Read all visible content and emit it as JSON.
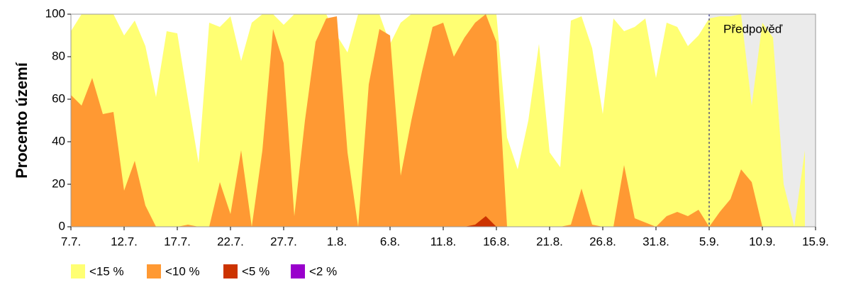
{
  "chart_data": {
    "type": "area",
    "y_label": "Procento území",
    "categories": [
      "7.7.",
      null,
      null,
      null,
      null,
      "12.7.",
      null,
      null,
      null,
      null,
      "17.7.",
      null,
      null,
      null,
      null,
      "22.7.",
      null,
      null,
      null,
      null,
      "27.7.",
      null,
      null,
      null,
      null,
      "1.8.",
      null,
      null,
      null,
      null,
      "6.8.",
      null,
      null,
      null,
      null,
      "11.8.",
      null,
      null,
      null,
      null,
      "16.8.",
      null,
      null,
      null,
      null,
      "21.8.",
      null,
      null,
      null,
      null,
      "26.8.",
      null,
      null,
      null,
      null,
      "31.8.",
      null,
      null,
      null,
      null,
      "5.9.",
      null,
      null,
      null,
      null,
      "10.9.",
      null,
      null,
      null,
      null,
      "15.9."
    ],
    "series": [
      {
        "name": "<15 %",
        "color": "#ffff73",
        "values": [
          92,
          100,
          100,
          100,
          100,
          90,
          97,
          85,
          61,
          92,
          91,
          60,
          30,
          96,
          94,
          99,
          78,
          96,
          100,
          100,
          95,
          100,
          100,
          100,
          100,
          90,
          82,
          100,
          100,
          100,
          86,
          96,
          100,
          100,
          100,
          100,
          100,
          100,
          100,
          100,
          100,
          42,
          27,
          50,
          86,
          35,
          28,
          97,
          99,
          84,
          53,
          98,
          92,
          94,
          98,
          70,
          96,
          94,
          85,
          90,
          98,
          99,
          99,
          100,
          57,
          96,
          89,
          20,
          0,
          36,
          null
        ]
      },
      {
        "name": "<10 %",
        "color": "#ff9933",
        "values": [
          62,
          57,
          70,
          53,
          54,
          17,
          31,
          10,
          0,
          0,
          0,
          1,
          0,
          0,
          21,
          6,
          36,
          0,
          36,
          93,
          77,
          5,
          50,
          87,
          98,
          99,
          35,
          0,
          67,
          93,
          90,
          24,
          50,
          73,
          94,
          96,
          80,
          89,
          96,
          100,
          87,
          0,
          0,
          0,
          0,
          0,
          0,
          1,
          18,
          1,
          0,
          0,
          29,
          4,
          2,
          0,
          5,
          7,
          5,
          8,
          0,
          7,
          13,
          27,
          21,
          0,
          0,
          0,
          0,
          0,
          null
        ]
      },
      {
        "name": "<5 %",
        "color": "#cc3300",
        "values": [
          0,
          0,
          0,
          0,
          0,
          0,
          0,
          0,
          0,
          0,
          0,
          0,
          0,
          0,
          0,
          0,
          0,
          0,
          0,
          0,
          0,
          0,
          0,
          0,
          0,
          0,
          0,
          0,
          0,
          0,
          0,
          0,
          0,
          0,
          0,
          0,
          0,
          0,
          1,
          5,
          0,
          0,
          0,
          0,
          0,
          0,
          0,
          0,
          0,
          0,
          0,
          0,
          0,
          0,
          0,
          0,
          0,
          0,
          0,
          0,
          0,
          0,
          0,
          0,
          0,
          0,
          0,
          0,
          0,
          0,
          null
        ]
      },
      {
        "name": "<2 %",
        "color": "#9900cc",
        "values": [
          0,
          0,
          0,
          0,
          0,
          0,
          0,
          0,
          0,
          0,
          0,
          0,
          0,
          0,
          0,
          0,
          0,
          0,
          0,
          0,
          0,
          0,
          0,
          0,
          0,
          0,
          0,
          0,
          0,
          0,
          0,
          0,
          0,
          0,
          0,
          0,
          0,
          0,
          0,
          0,
          0,
          0,
          0,
          0,
          0,
          0,
          0,
          0,
          0,
          0,
          0,
          0,
          0,
          0,
          0,
          0,
          0,
          0,
          0,
          0,
          0,
          0,
          0,
          0,
          0,
          0,
          0,
          0,
          0,
          0,
          null
        ]
      }
    ],
    "ylim": [
      0,
      100
    ],
    "yticks": [
      0,
      20,
      40,
      60,
      80,
      100
    ],
    "annotations": [
      {
        "text": "Předpověď",
        "x": "5.9."
      }
    ],
    "forecast_color": "#ebebeb"
  }
}
